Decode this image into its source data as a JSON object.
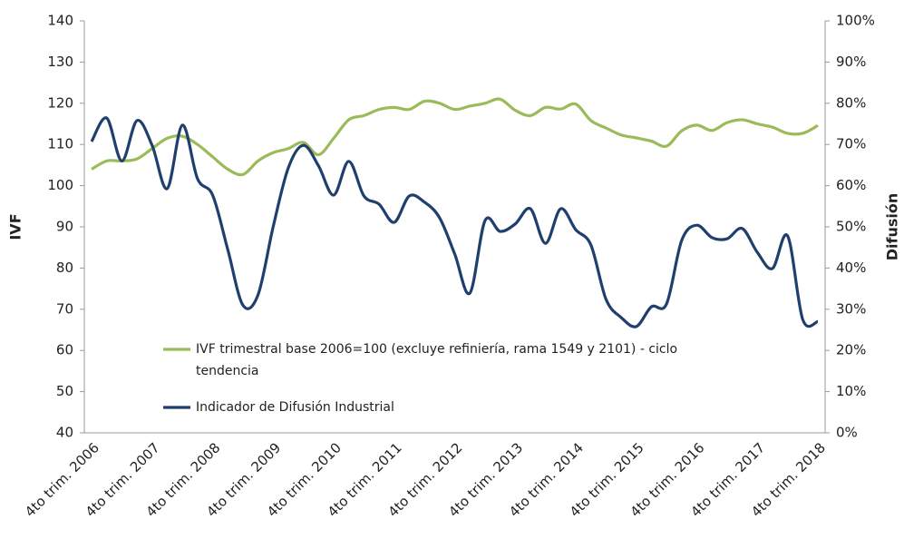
{
  "chart_data": {
    "type": "line",
    "categories": [
      "4to trim. 2006",
      null,
      null,
      null,
      "4to trim. 2007",
      null,
      null,
      null,
      "4to trim. 2008",
      null,
      null,
      null,
      "4to trim. 2009",
      null,
      null,
      null,
      "4to trim. 2010",
      null,
      null,
      null,
      "4to trim. 2011",
      null,
      null,
      null,
      "4to trim. 2012",
      null,
      null,
      null,
      "4to trim. 2013",
      null,
      null,
      null,
      "4to trim. 2014",
      null,
      null,
      null,
      "4to trim. 2015",
      null,
      null,
      null,
      "4to trim. 2016",
      null,
      null,
      null,
      "4to trim. 2017",
      null,
      null,
      null,
      "4to trim. 2018"
    ],
    "series": [
      {
        "name": "IVF trimestral base 2006=100 (excluye refiniería, rama 1549 y 2101) - ciclo tendencia",
        "color": "#9bbb59",
        "axis": "y",
        "values": [
          104,
          106,
          106,
          106.5,
          109,
          111.5,
          112,
          110,
          107,
          104,
          102.7,
          106,
          108,
          109,
          110.5,
          107.5,
          111.5,
          116,
          117,
          118.5,
          119,
          118.5,
          120.5,
          120,
          118.5,
          119.3,
          120,
          121,
          118.3,
          117,
          119,
          118.6,
          119.8,
          115.8,
          114,
          112.3,
          111.6,
          110.8,
          109.6,
          113.3,
          114.7,
          113.4,
          115.3,
          116,
          115,
          114.2,
          112.7,
          112.7,
          114.6
        ]
      },
      {
        "name": "Indicador de Difusión Industrial",
        "color": "#1f3f6e",
        "axis": "y2",
        "values": [
          70.7,
          76.4,
          66,
          75.8,
          69.8,
          59.3,
          74.7,
          61.7,
          57.7,
          44.5,
          31,
          33.5,
          50,
          64.3,
          69.8,
          64.8,
          57.7,
          65.9,
          57.5,
          55.5,
          51.1,
          57.5,
          56,
          52.2,
          43.4,
          33.9,
          51.5,
          48.9,
          50.7,
          54.4,
          46,
          54.4,
          49.3,
          45.6,
          32.4,
          28,
          25.8,
          30.6,
          31.3,
          46.7,
          50.4,
          47.4,
          47.1,
          49.6,
          43.8,
          39.9,
          47.8,
          27.5,
          27
        ]
      }
    ],
    "ylabel": "IVF",
    "y2label": "Difusión",
    "ylim": [
      40,
      140
    ],
    "yticks": [
      40,
      50,
      60,
      70,
      80,
      90,
      100,
      110,
      120,
      130,
      140
    ],
    "y2lim": [
      0,
      100
    ],
    "y2ticks": [
      {
        "value": 0,
        "label": "0%"
      },
      {
        "value": 10,
        "label": "10%"
      },
      {
        "value": 20,
        "label": "20%"
      },
      {
        "value": 30,
        "label": "30%"
      },
      {
        "value": 40,
        "label": "40%"
      },
      {
        "value": 50,
        "label": "50%"
      },
      {
        "value": 60,
        "label": "60%"
      },
      {
        "value": 70,
        "label": "70%"
      },
      {
        "value": 80,
        "label": "80%"
      },
      {
        "value": 90,
        "label": "90%"
      },
      {
        "value": 100,
        "label": "100%"
      }
    ],
    "grid": false
  }
}
